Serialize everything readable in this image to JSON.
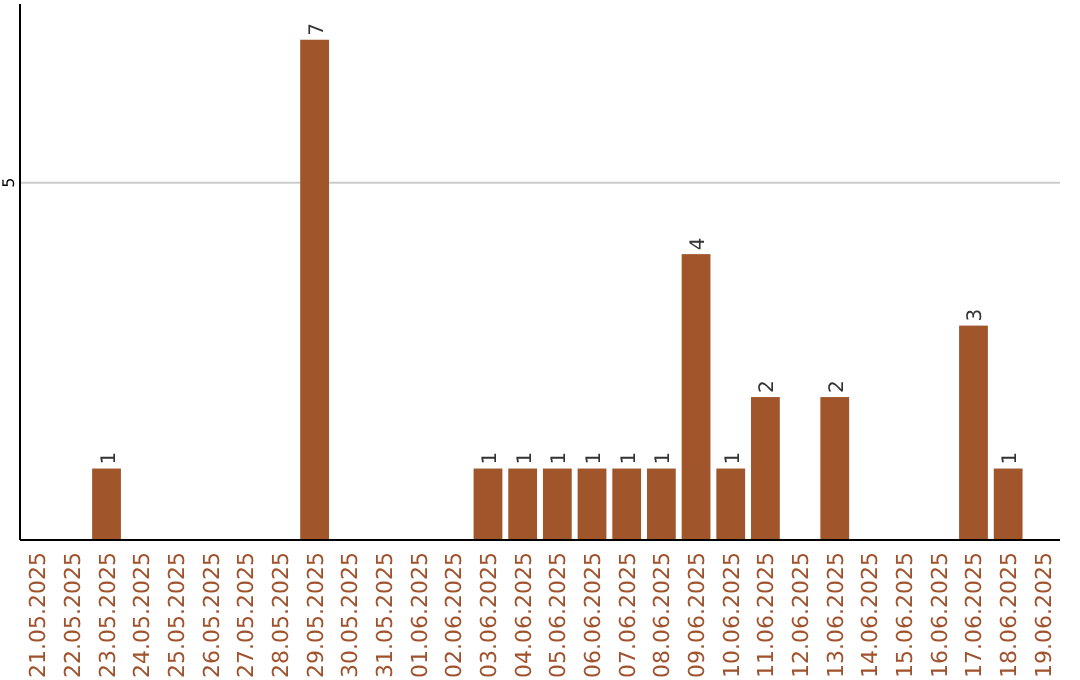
{
  "chart_data": {
    "type": "bar",
    "categories": [
      "21.05.2025",
      "22.05.2025",
      "23.05.2025",
      "24.05.2025",
      "25.05.2025",
      "26.05.2025",
      "27.05.2025",
      "28.05.2025",
      "29.05.2025",
      "30.05.2025",
      "31.05.2025",
      "01.06.2025",
      "02.06.2025",
      "03.06.2025",
      "04.06.2025",
      "05.06.2025",
      "06.06.2025",
      "07.06.2025",
      "08.06.2025",
      "09.06.2025",
      "10.06.2025",
      "11.06.2025",
      "12.06.2025",
      "13.06.2025",
      "14.06.2025",
      "15.06.2025",
      "16.06.2025",
      "17.06.2025",
      "18.06.2025",
      "19.06.2025"
    ],
    "values": [
      0,
      0,
      1,
      0,
      0,
      0,
      0,
      0,
      7,
      0,
      0,
      0,
      0,
      1,
      1,
      1,
      1,
      1,
      1,
      4,
      1,
      2,
      0,
      2,
      0,
      0,
      0,
      3,
      1,
      0
    ],
    "value_labels": [
      null,
      null,
      "1",
      null,
      null,
      null,
      null,
      null,
      "7",
      null,
      null,
      null,
      null,
      "1",
      "1",
      "1",
      "1",
      "1",
      "1",
      "4",
      "1",
      "2",
      null,
      "2",
      null,
      null,
      null,
      "3",
      "1",
      null
    ],
    "color": "#a0562a",
    "ylim": [
      0,
      7.5
    ],
    "yticks": [
      5
    ],
    "grid": "y"
  }
}
